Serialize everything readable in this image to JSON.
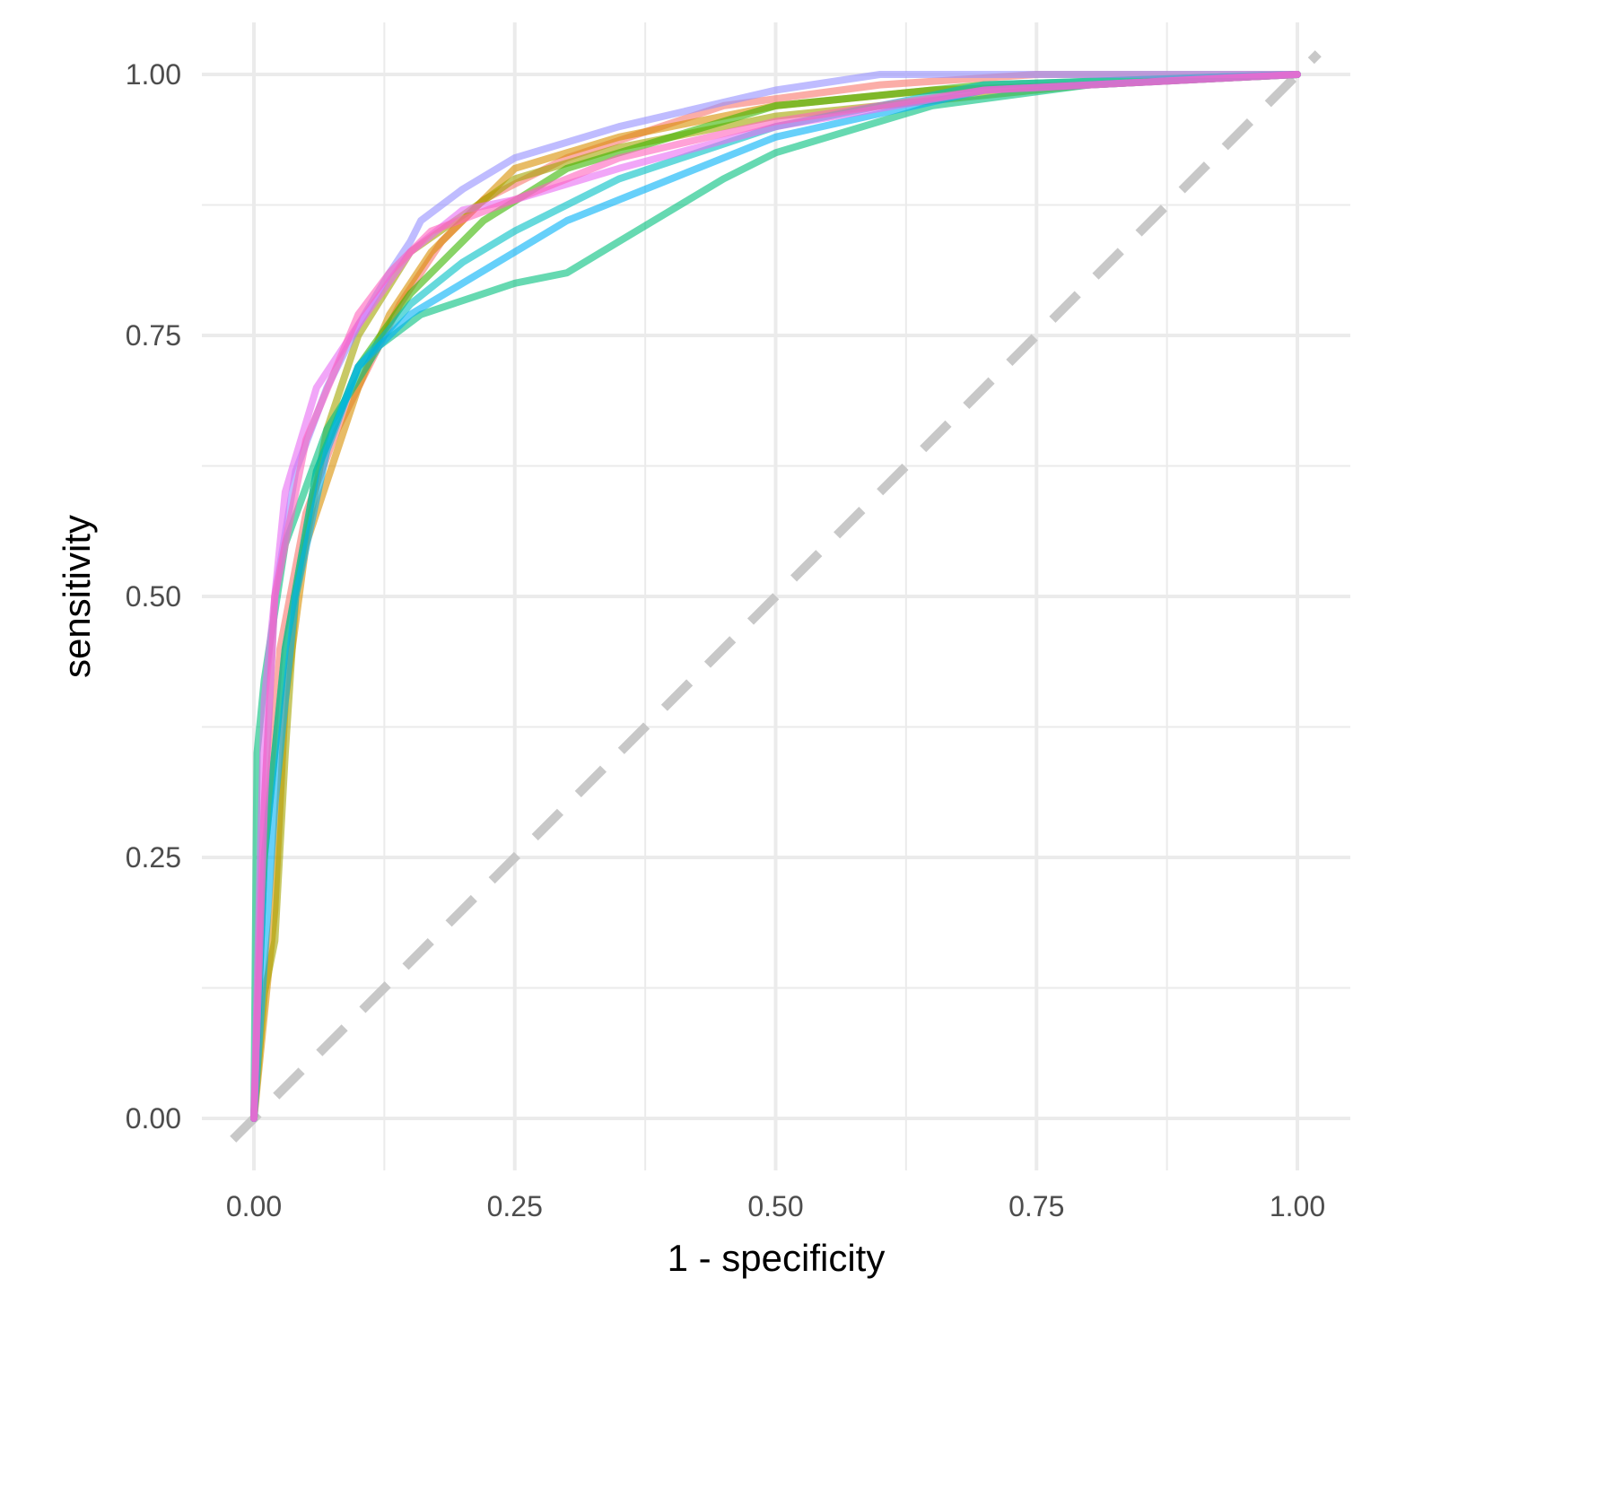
{
  "chart_data": {
    "type": "line",
    "title": "",
    "xlabel": "1 - specificity",
    "ylabel": "sensitivity",
    "xlim": [
      -0.05,
      1.05
    ],
    "ylim": [
      -0.05,
      1.05
    ],
    "grid": true,
    "legend": "none",
    "x_ticks": [
      "0.00",
      "0.25",
      "0.50",
      "0.75",
      "1.00"
    ],
    "y_ticks": [
      "0.00",
      "0.25",
      "0.50",
      "0.75",
      "1.00"
    ],
    "reference_line": {
      "style": "dashed",
      "color": "#c8c8c8",
      "from": [
        -0.02,
        -0.02
      ],
      "to": [
        1.02,
        1.02
      ]
    },
    "series": [
      {
        "color": "#F8766D",
        "points": [
          [
            0,
            0
          ],
          [
            0.01,
            0.25
          ],
          [
            0.025,
            0.45
          ],
          [
            0.05,
            0.58
          ],
          [
            0.08,
            0.66
          ],
          [
            0.11,
            0.72
          ],
          [
            0.14,
            0.78
          ],
          [
            0.18,
            0.84
          ],
          [
            0.22,
            0.88
          ],
          [
            0.3,
            0.92
          ],
          [
            0.45,
            0.97
          ],
          [
            0.6,
            0.99
          ],
          [
            0.75,
            1
          ],
          [
            1,
            1
          ]
        ]
      },
      {
        "color": "#D89000",
        "points": [
          [
            0,
            0
          ],
          [
            0.02,
            0.2
          ],
          [
            0.03,
            0.4
          ],
          [
            0.05,
            0.55
          ],
          [
            0.08,
            0.64
          ],
          [
            0.1,
            0.7
          ],
          [
            0.13,
            0.77
          ],
          [
            0.17,
            0.83
          ],
          [
            0.22,
            0.88
          ],
          [
            0.25,
            0.91
          ],
          [
            0.35,
            0.94
          ],
          [
            0.5,
            0.97
          ],
          [
            0.65,
            0.985
          ],
          [
            0.8,
            0.99
          ],
          [
            1,
            1
          ]
        ]
      },
      {
        "color": "#A3A500",
        "points": [
          [
            0,
            0
          ],
          [
            0.01,
            0.12
          ],
          [
            0.02,
            0.17
          ],
          [
            0.03,
            0.35
          ],
          [
            0.04,
            0.5
          ],
          [
            0.07,
            0.66
          ],
          [
            0.1,
            0.75
          ],
          [
            0.15,
            0.83
          ],
          [
            0.25,
            0.9
          ],
          [
            0.35,
            0.93
          ],
          [
            0.5,
            0.96
          ],
          [
            0.8,
            0.99
          ],
          [
            1,
            1
          ]
        ]
      },
      {
        "color": "#39B600",
        "points": [
          [
            0,
            0
          ],
          [
            0.01,
            0.25
          ],
          [
            0.03,
            0.45
          ],
          [
            0.06,
            0.62
          ],
          [
            0.1,
            0.72
          ],
          [
            0.15,
            0.79
          ],
          [
            0.22,
            0.86
          ],
          [
            0.3,
            0.91
          ],
          [
            0.5,
            0.97
          ],
          [
            0.7,
            0.99
          ],
          [
            1,
            1
          ]
        ]
      },
      {
        "color": "#00BF7D",
        "points": [
          [
            0,
            0
          ],
          [
            0.003,
            0.35
          ],
          [
            0.01,
            0.42
          ],
          [
            0.03,
            0.55
          ],
          [
            0.07,
            0.66
          ],
          [
            0.12,
            0.74
          ],
          [
            0.16,
            0.77
          ],
          [
            0.22,
            0.79
          ],
          [
            0.25,
            0.8
          ],
          [
            0.3,
            0.81
          ],
          [
            0.35,
            0.84
          ],
          [
            0.4,
            0.87
          ],
          [
            0.45,
            0.9
          ],
          [
            0.5,
            0.925
          ],
          [
            0.55,
            0.94
          ],
          [
            0.65,
            0.97
          ],
          [
            0.8,
            0.99
          ],
          [
            1,
            1
          ]
        ]
      },
      {
        "color": "#00BFC4",
        "points": [
          [
            0,
            0
          ],
          [
            0.01,
            0.25
          ],
          [
            0.03,
            0.45
          ],
          [
            0.06,
            0.62
          ],
          [
            0.1,
            0.72
          ],
          [
            0.15,
            0.78
          ],
          [
            0.2,
            0.82
          ],
          [
            0.25,
            0.85
          ],
          [
            0.35,
            0.9
          ],
          [
            0.5,
            0.95
          ],
          [
            0.7,
            0.99
          ],
          [
            1,
            1
          ]
        ]
      },
      {
        "color": "#00B0F6",
        "points": [
          [
            0,
            0
          ],
          [
            0.02,
            0.3
          ],
          [
            0.04,
            0.5
          ],
          [
            0.07,
            0.64
          ],
          [
            0.1,
            0.72
          ],
          [
            0.15,
            0.77
          ],
          [
            0.2,
            0.8
          ],
          [
            0.25,
            0.83
          ],
          [
            0.3,
            0.86
          ],
          [
            0.4,
            0.9
          ],
          [
            0.5,
            0.94
          ],
          [
            0.7,
            0.985
          ],
          [
            1,
            1
          ]
        ]
      },
      {
        "color": "#9590FF",
        "points": [
          [
            0,
            0
          ],
          [
            0.01,
            0.3
          ],
          [
            0.02,
            0.5
          ],
          [
            0.04,
            0.62
          ],
          [
            0.07,
            0.7
          ],
          [
            0.1,
            0.76
          ],
          [
            0.13,
            0.81
          ],
          [
            0.15,
            0.84
          ],
          [
            0.16,
            0.86
          ],
          [
            0.2,
            0.89
          ],
          [
            0.25,
            0.92
          ],
          [
            0.35,
            0.95
          ],
          [
            0.5,
            0.985
          ],
          [
            0.6,
            1
          ],
          [
            1,
            1
          ]
        ]
      },
      {
        "color": "#E76BF3",
        "points": [
          [
            0,
            0
          ],
          [
            0.01,
            0.4
          ],
          [
            0.03,
            0.6
          ],
          [
            0.06,
            0.7
          ],
          [
            0.1,
            0.76
          ],
          [
            0.15,
            0.83
          ],
          [
            0.2,
            0.87
          ],
          [
            0.25,
            0.88
          ],
          [
            0.35,
            0.91
          ],
          [
            0.5,
            0.95
          ],
          [
            0.7,
            0.985
          ],
          [
            1,
            1
          ]
        ]
      },
      {
        "color": "#FF62BC",
        "points": [
          [
            0,
            0
          ],
          [
            0.01,
            0.3
          ],
          [
            0.02,
            0.5
          ],
          [
            0.05,
            0.65
          ],
          [
            0.1,
            0.77
          ],
          [
            0.13,
            0.81
          ],
          [
            0.17,
            0.85
          ],
          [
            0.25,
            0.88
          ],
          [
            0.35,
            0.92
          ],
          [
            0.5,
            0.955
          ],
          [
            0.7,
            0.985
          ],
          [
            1,
            1
          ]
        ]
      }
    ]
  }
}
